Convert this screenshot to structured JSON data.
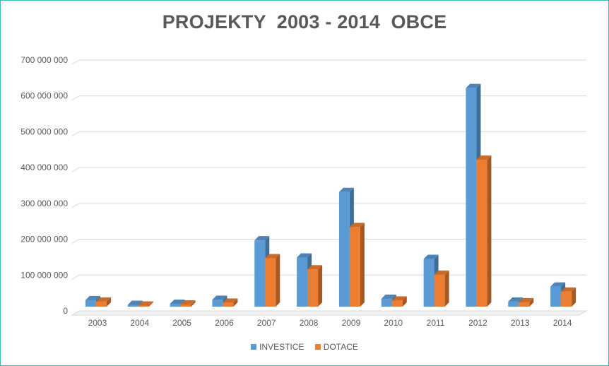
{
  "chart_data": {
    "type": "bar",
    "title": "PROJEKTY  2003 - 2014  OBCE",
    "xlabel": "",
    "ylabel": "",
    "ylim": [
      0,
      700000000
    ],
    "yticks": [
      0,
      100000000,
      200000000,
      300000000,
      400000000,
      500000000,
      600000000,
      700000000
    ],
    "ytick_labels": [
      "0",
      "100 000 000",
      "200 000 000",
      "300 000 000",
      "400 000 000",
      "500 000 000",
      "600 000 000",
      "700 000 000"
    ],
    "categories": [
      "2003",
      "2004",
      "2005",
      "2006",
      "2007",
      "2008",
      "2009",
      "2010",
      "2011",
      "2012",
      "2013",
      "2014"
    ],
    "series": [
      {
        "name": "INVESTICE",
        "color": "#5b9bd5",
        "values": [
          18000000,
          5000000,
          8000000,
          19000000,
          185000000,
          137000000,
          320000000,
          22000000,
          133000000,
          610000000,
          14000000,
          56000000
        ]
      },
      {
        "name": "DOTACE",
        "color": "#ed7d31",
        "values": [
          14000000,
          3000000,
          6000000,
          11000000,
          135000000,
          104000000,
          222000000,
          17000000,
          89000000,
          410000000,
          12000000,
          42000000
        ]
      }
    ],
    "grid": true,
    "legend_position": "bottom"
  }
}
